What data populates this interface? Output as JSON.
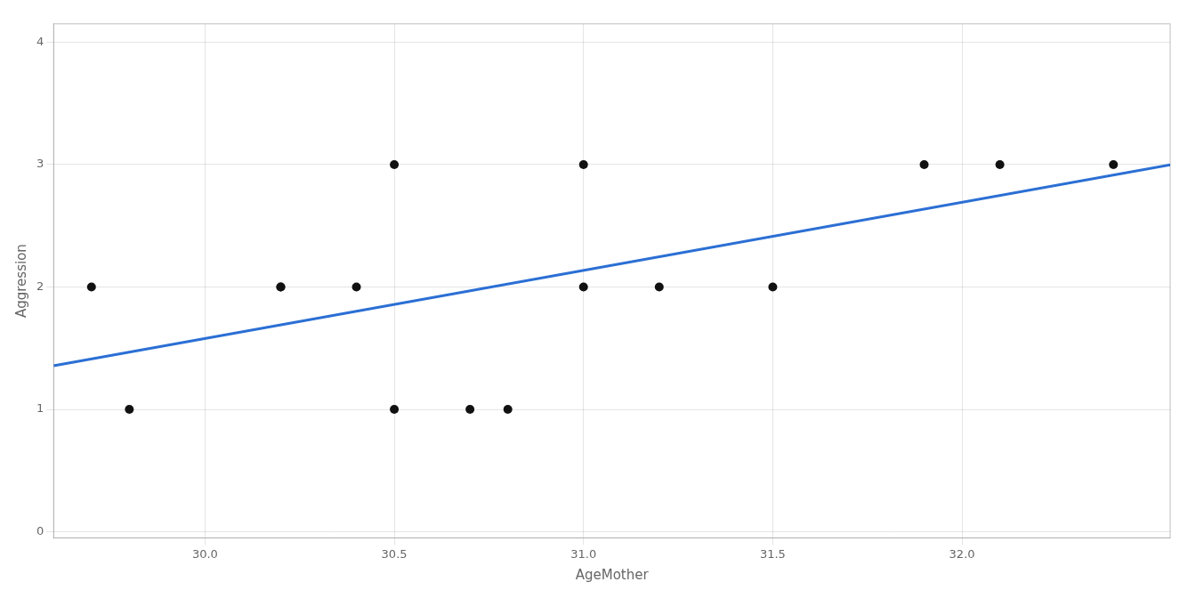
{
  "chart_data": {
    "type": "scatter",
    "xlabel": "AgeMother",
    "ylabel": "Aggression",
    "xlim": [
      29.6,
      32.55
    ],
    "ylim": [
      -0.05,
      4.15
    ],
    "xticks": [
      {
        "value": 30,
        "label": "30.0"
      },
      30.5,
      {
        "value": 31,
        "label": "31.0"
      },
      31.5,
      {
        "value": 32,
        "label": "32.0"
      }
    ],
    "yticks": [
      0,
      1,
      2,
      3,
      4
    ],
    "grid": true,
    "series": [
      {
        "type": "line",
        "color": "#2B6FD4",
        "x": [
          29.6,
          32.55
        ],
        "values": [
          1.356,
          2.9987
        ]
      },
      {
        "type": "scatter",
        "color": "#111111",
        "x": [
          29.7,
          29.8,
          30.2,
          30.2,
          30.4,
          30.5,
          30.5,
          30.7,
          30.8,
          31.0,
          31.0,
          31.2,
          31.5,
          31.9,
          32.1,
          32.4
        ],
        "values": [
          2,
          1,
          2,
          2,
          2,
          3,
          1,
          1,
          1,
          3,
          2,
          2,
          2,
          3,
          3,
          3
        ]
      }
    ]
  }
}
